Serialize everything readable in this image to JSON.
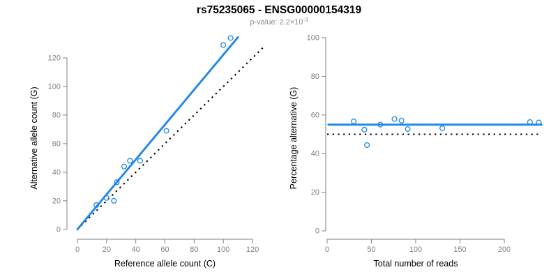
{
  "header": {
    "title": "rs75235065 - ENSG00000154319",
    "subtitle_main": "p-value: 2.2×10",
    "subtitle_exponent": "-3"
  },
  "colors": {
    "accent_blue": "#1e87e8",
    "reference_black": "#000000",
    "axis_gray": "#7f7f7f",
    "subtitle_gray": "#8c8c8c",
    "label_black": "#000000"
  },
  "chart_data": [
    {
      "type": "scatter",
      "name": "allele-counts",
      "xlabel": "Reference allele count (C)",
      "ylabel": "Alternative allele count (G)",
      "xlim": [
        0,
        128
      ],
      "ylim": [
        0,
        136
      ],
      "xticks": [
        0,
        20,
        40,
        60,
        80,
        100,
        120
      ],
      "yticks": [
        0,
        20,
        40,
        60,
        80,
        100,
        120
      ],
      "grid": false,
      "points": [
        [
          13,
          17
        ],
        [
          20,
          22
        ],
        [
          25,
          20
        ],
        [
          27,
          33
        ],
        [
          32,
          44
        ],
        [
          36,
          48
        ],
        [
          43,
          48
        ],
        [
          61,
          69
        ],
        [
          100,
          129
        ],
        [
          105,
          134
        ]
      ],
      "fit_line": {
        "kind": "through-origin",
        "slope": 1.2222,
        "x_range": [
          0,
          110
        ]
      },
      "reference_line": {
        "kind": "identity",
        "range": [
          0,
          127.5
        ]
      }
    },
    {
      "type": "scatter",
      "name": "percentage-vs-coverage",
      "xlabel": "Total number of reads",
      "ylabel": "Percentage alternative (G)",
      "xlim": [
        0,
        245
      ],
      "ylim": [
        0,
        100
      ],
      "xticks": [
        0,
        50,
        100,
        150,
        200
      ],
      "yticks": [
        0,
        20,
        40,
        60,
        80,
        100
      ],
      "grid": false,
      "points": [
        [
          30,
          56.7
        ],
        [
          42,
          52.4
        ],
        [
          45,
          44.4
        ],
        [
          60,
          55
        ],
        [
          76,
          57.9
        ],
        [
          84,
          57.1
        ],
        [
          91,
          52.7
        ],
        [
          130,
          53.1
        ],
        [
          229,
          56.3
        ],
        [
          239,
          56.1
        ]
      ],
      "fit_line": {
        "kind": "horizontal",
        "y": 55,
        "x_range": [
          1.5,
          242
        ]
      },
      "reference_line": {
        "kind": "horizontal",
        "y": 50,
        "x_range": [
          0,
          242
        ]
      }
    }
  ]
}
